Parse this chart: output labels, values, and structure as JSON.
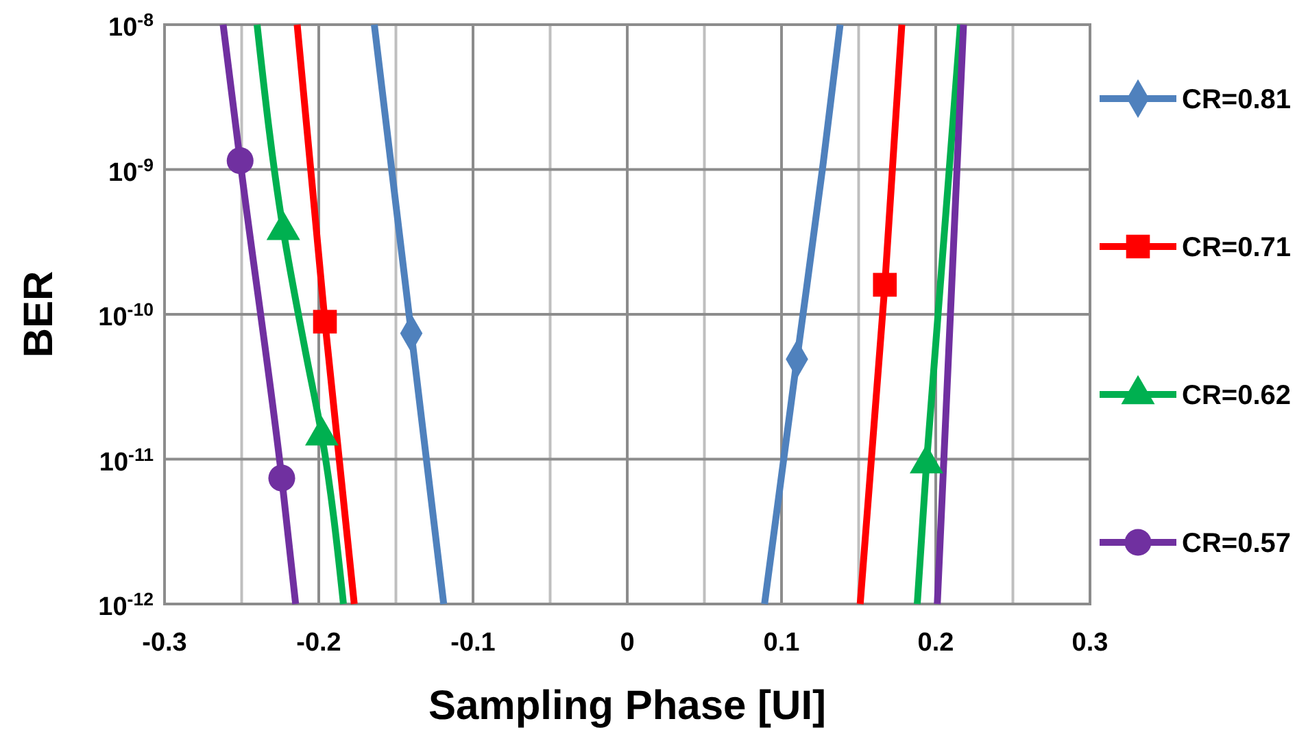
{
  "chart_data": {
    "type": "line",
    "xlabel": "Sampling Phase [UI]",
    "ylabel": "BER",
    "log": "y",
    "grid": true,
    "legend": "right",
    "line_style": "solid",
    "xlim": [
      -0.3,
      0.3
    ],
    "xticks": [
      -0.3,
      {
        "value": -0.25,
        "label": null
      },
      -0.2,
      {
        "value": -0.15,
        "label": null
      },
      -0.1,
      {
        "value": -0.05,
        "label": null
      },
      0,
      {
        "value": 0.05,
        "label": null
      },
      0.1,
      {
        "value": 0.15,
        "label": null
      },
      0.2,
      {
        "value": 0.25,
        "label": null
      },
      0.3
    ],
    "ylim": [
      1e-12,
      1e-08
    ],
    "yticks": [
      {
        "value": 1e-12,
        "label": "10$^{-12}$"
      },
      {
        "value": 1e-11,
        "label": "10$^{-11}$"
      },
      {
        "value": 1e-10,
        "label": "10$^{-10}$"
      },
      {
        "value": 1e-09,
        "label": "10$^{-9}$"
      },
      {
        "value": 1e-08,
        "label": "10$^{-8}$"
      }
    ],
    "series": [
      {
        "name": "CR=0.81",
        "color": "#4f81bd",
        "x": [
          -0.164,
          -0.14,
          -0.119,
          0,
          0.089,
          0.11,
          0.127,
          0.138
        ],
        "values": [
          1e-08,
          7.4e-11,
          1e-12,
          null,
          1e-12,
          4.9e-11,
          1.1e-09,
          1e-08
        ]
      },
      {
        "name": "CR=0.71",
        "color": "#ff0000",
        "x": [
          -0.214,
          -0.196,
          -0.177,
          0,
          0.151,
          0.167,
          0.178
        ],
        "values": [
          1e-08,
          8.9e-11,
          1e-12,
          null,
          1e-12,
          1.6e-10,
          1e-08
        ]
      },
      {
        "name": "CR=0.62",
        "color": "#00b050",
        "x": [
          -0.24,
          -0.223,
          -0.209,
          -0.198,
          -0.184,
          0,
          0.188,
          0.194,
          0.216
        ],
        "values": [
          1e-08,
          3.8e-10,
          5.8e-11,
          1.45e-11,
          1e-12,
          null,
          1e-12,
          9.3e-12,
          1e-08
        ]
      },
      {
        "name": "CR=0.57",
        "color": "#7030a0",
        "x": [
          -0.262,
          -0.251,
          -0.224,
          -0.215,
          0,
          0.201,
          0.218
        ],
        "values": [
          1e-08,
          1.15e-09,
          7.4e-12,
          1e-12,
          null,
          1e-12,
          1e-08
        ]
      },
      {
        "type": "scatter",
        "color": "#4f81bd",
        "marker": "diamond",
        "x": [
          -0.14,
          0.11
        ],
        "values": [
          7.4e-11,
          4.9e-11
        ]
      },
      {
        "type": "scatter",
        "color": "#ff0000",
        "marker": "square",
        "x": [
          -0.196,
          0.167
        ],
        "values": [
          8.9e-11,
          1.6e-10
        ]
      },
      {
        "type": "scatter",
        "color": "#00b050",
        "marker": "triangle",
        "x": [
          -0.223,
          -0.198,
          0.194
        ],
        "values": [
          3.8e-10,
          1.45e-11,
          9.3e-12
        ]
      },
      {
        "type": "scatter",
        "color": "#7030a0",
        "marker": "circle",
        "x": [
          -0.251,
          -0.224
        ],
        "values": [
          1.15e-09,
          7.4e-12
        ]
      }
    ]
  }
}
